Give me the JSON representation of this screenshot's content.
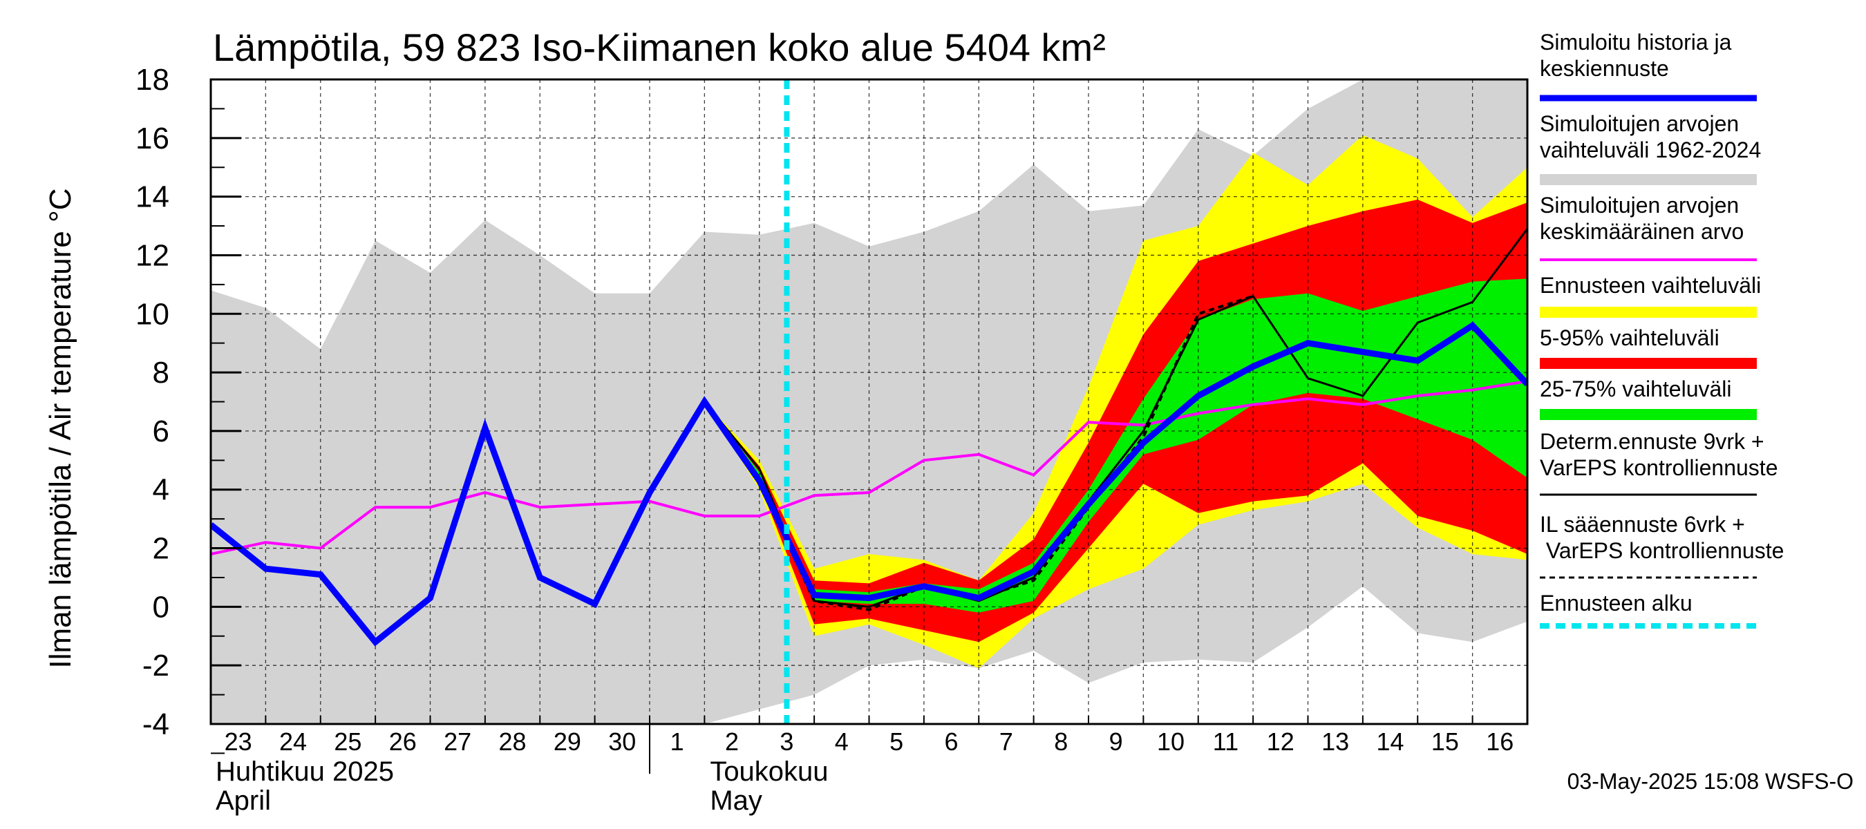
{
  "chart_data": {
    "type": "area",
    "title": "Lämpötila, 59 823 Iso-Kiimanen koko alue 5404 km²",
    "ylabel": "Ilman lämpötila / Air temperature   °C",
    "ylim": [
      -4,
      18
    ],
    "yticks": [
      -4,
      -2,
      0,
      2,
      4,
      6,
      8,
      10,
      12,
      14,
      16,
      18
    ],
    "x_labels": [
      "23",
      "24",
      "25",
      "26",
      "27",
      "28",
      "29",
      "30",
      "1",
      "2",
      "3",
      "4",
      "5",
      "6",
      "7",
      "8",
      "9",
      "10",
      "11",
      "12",
      "13",
      "14",
      "15",
      "16"
    ],
    "month_labels": [
      {
        "fi": "Huhtikuu  2025",
        "en": "April"
      },
      {
        "fi": "Toukokuu",
        "en": "May"
      }
    ],
    "forecast_start_day": 10.5,
    "series": {
      "historical_range": {
        "name": "Simuloitujen arvojen vaihteluväli 1962-2024",
        "x": [
          0,
          1,
          2,
          3,
          4,
          5,
          6,
          7,
          8,
          9,
          10,
          11,
          12,
          13,
          14,
          15,
          16,
          17,
          18,
          19,
          20,
          21,
          22,
          23,
          24
        ],
        "upper": [
          10.8,
          10.2,
          8.8,
          12.5,
          11.4,
          13.2,
          12.0,
          10.7,
          10.7,
          12.8,
          12.7,
          13.1,
          12.3,
          12.8,
          13.5,
          15.1,
          13.5,
          13.7,
          16.3,
          15.4,
          17.0,
          18.0,
          18.0,
          18.0,
          18.0
        ],
        "lower": [
          -4,
          -4,
          -4,
          -4,
          -4,
          -4,
          -4,
          -4,
          -4,
          -4,
          -3.5,
          -3.0,
          -2.0,
          -1.8,
          -2.1,
          -1.5,
          -2.6,
          -1.9,
          -1.8,
          -1.9,
          -0.7,
          0.7,
          -0.9,
          -1.2,
          -0.5
        ]
      },
      "forecast_range": {
        "name": "Ennusteen vaihteluväli",
        "x": [
          9,
          10,
          11,
          12,
          13,
          14,
          15,
          16,
          17,
          18,
          19,
          20,
          21,
          22,
          23,
          24
        ],
        "upper": [
          7.0,
          5.0,
          1.3,
          1.8,
          1.6,
          0.9,
          3.2,
          7.5,
          12.5,
          13.0,
          15.5,
          14.4,
          16.1,
          15.3,
          13.3,
          15.0
        ],
        "lower": [
          7.0,
          4.0,
          -1.0,
          -0.6,
          -1.3,
          -2.1,
          -0.4,
          0.6,
          1.3,
          2.8,
          3.3,
          3.6,
          4.2,
          2.7,
          1.8,
          1.6
        ]
      },
      "p5_95": {
        "name": "5-95% vaihteluväli",
        "x": [
          9,
          10,
          11,
          12,
          13,
          14,
          15,
          16,
          17,
          18,
          19,
          20,
          21,
          22,
          23,
          24
        ],
        "upper": [
          7.0,
          4.8,
          0.9,
          0.8,
          1.5,
          0.9,
          2.3,
          5.6,
          9.3,
          11.8,
          12.4,
          13.0,
          13.5,
          13.9,
          13.1,
          13.8
        ],
        "lower": [
          7.0,
          4.2,
          -0.6,
          -0.4,
          -0.8,
          -1.2,
          -0.2,
          2.0,
          4.2,
          3.2,
          3.6,
          3.8,
          4.9,
          3.1,
          2.6,
          1.8
        ]
      },
      "p25_75": {
        "name": "25-75% vaihteluväli",
        "x": [
          9,
          10,
          11,
          12,
          13,
          14,
          15,
          16,
          17,
          18,
          19,
          20,
          21,
          22,
          23,
          24
        ],
        "upper": [
          7.0,
          4.6,
          0.6,
          0.5,
          0.8,
          0.6,
          1.5,
          4.0,
          7.1,
          9.8,
          10.5,
          10.7,
          10.1,
          10.6,
          11.1,
          11.2
        ],
        "lower": [
          7.0,
          4.4,
          0.2,
          0.1,
          0.1,
          -0.2,
          0.2,
          2.9,
          5.2,
          5.7,
          6.9,
          7.3,
          7.1,
          6.4,
          5.7,
          4.4
        ]
      },
      "mean": {
        "name": "Simuloitujen arvojen keskimääräinen arvo",
        "color": "#ff00ff",
        "x": [
          0,
          1,
          2,
          3,
          4,
          5,
          6,
          7,
          8,
          9,
          10,
          11,
          12,
          13,
          14,
          15,
          16,
          17,
          18,
          19,
          20,
          21,
          22,
          23,
          24
        ],
        "values": [
          1.8,
          2.2,
          2.0,
          3.4,
          3.4,
          3.9,
          3.4,
          3.5,
          3.6,
          3.1,
          3.1,
          3.8,
          3.9,
          5.0,
          5.2,
          4.5,
          6.3,
          6.2,
          6.6,
          6.9,
          7.1,
          6.9,
          7.2,
          7.4,
          7.7
        ]
      },
      "simulated": {
        "name": "Simuloitu historia ja keskiennuste",
        "color": "#0000ff",
        "x": [
          0,
          1,
          2,
          3,
          4,
          5,
          6,
          7,
          8,
          9,
          10,
          11,
          12,
          13,
          14,
          15,
          16,
          17,
          18,
          19,
          20,
          21,
          22,
          23,
          24
        ],
        "values": [
          2.8,
          1.3,
          1.1,
          -1.2,
          0.3,
          6.1,
          1.0,
          0.1,
          3.9,
          7.0,
          4.3,
          0.4,
          0.3,
          0.7,
          0.3,
          1.2,
          3.5,
          5.6,
          7.2,
          8.2,
          9.0,
          8.7,
          8.4,
          9.6,
          7.6
        ]
      },
      "deterministic": {
        "name": "Determ.ennuste 9vrk + VarEPS kontrolliennuste",
        "color": "#000000",
        "x": [
          8,
          9,
          10,
          11,
          12,
          13,
          14,
          15,
          16,
          17,
          18,
          19,
          20,
          21,
          22,
          23,
          24
        ],
        "values": [
          3.9,
          7.0,
          4.7,
          0.2,
          0.0,
          0.7,
          0.2,
          1.0,
          3.6,
          6.0,
          9.8,
          10.6,
          7.8,
          7.2,
          9.7,
          10.4,
          12.9
        ]
      },
      "il_forecast": {
        "name": "IL sääennuste 6vrk + VarEPS kontrolliennuste",
        "color": "#000000",
        "x": [
          8,
          9,
          10,
          11,
          12,
          13,
          14,
          15,
          16,
          17,
          18,
          19
        ],
        "values": [
          3.9,
          7.0,
          4.3,
          0.2,
          -0.1,
          0.7,
          0.3,
          0.9,
          3.4,
          5.8,
          10.0,
          10.6
        ]
      }
    },
    "legend": [
      {
        "label": "Simuloitu historia ja keskiennuste",
        "color": "#0000ff",
        "kind": "thick"
      },
      {
        "label": "Simuloitujen arvojen vaihteluväli 1962-2024",
        "color": "#d3d3d3",
        "kind": "band"
      },
      {
        "label": "Simuloitujen arvojen keskimääräinen arvo",
        "color": "#ff00ff",
        "kind": "line"
      },
      {
        "label": "Ennusteen vaihteluväli",
        "color": "#ffff00",
        "kind": "band"
      },
      {
        "label": "5-95% vaihteluväli",
        "color": "#ff0000",
        "kind": "band"
      },
      {
        "label": "25-75% vaihteluväli",
        "color": "#00ee00",
        "kind": "band"
      },
      {
        "label": "Determ.ennuste 9vrk + VarEPS kontrolliennuste",
        "color": "#000000",
        "kind": "thin"
      },
      {
        "label": "IL sääennuste 6vrk + VarEPS kontrolliennuste",
        "color": "#000000",
        "kind": "dashed"
      },
      {
        "label": "Ennusteen alku",
        "color": "#00e5ee",
        "kind": "dotted"
      }
    ],
    "timestamp": "03-May-2025 15:08 WSFS-O"
  }
}
